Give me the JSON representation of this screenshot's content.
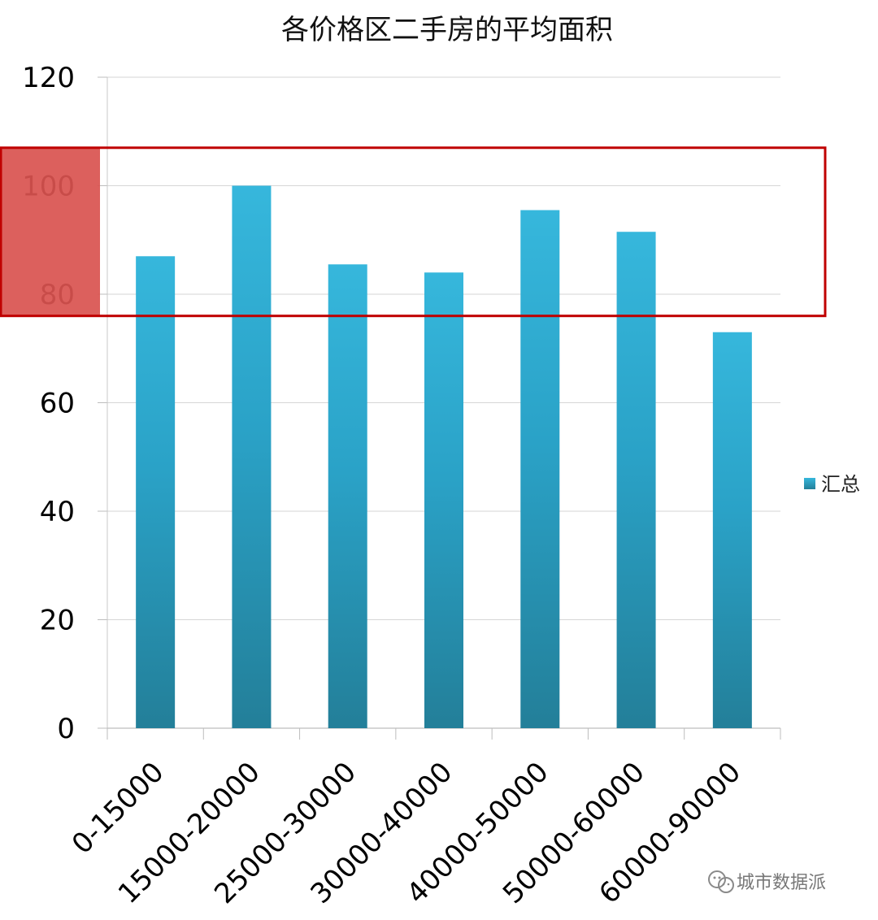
{
  "chart_data": {
    "type": "bar",
    "title": "各价格区二手房的平均面积",
    "xlabel": "",
    "ylabel": "",
    "categories": [
      "0-15000",
      "15000-20000",
      "25000-30000",
      "30000-40000",
      "40000-50000",
      "50000-60000",
      "60000-90000"
    ],
    "series": [
      {
        "name": "汇总",
        "values": [
          87,
          100,
          85.5,
          84,
          95.5,
          91.5,
          73
        ],
        "color": "#2aa2c7"
      }
    ],
    "ylim": [
      0,
      120
    ],
    "yticks": [
      0,
      20,
      40,
      60,
      80,
      100,
      120
    ],
    "grid": true,
    "legend_position": "right",
    "highlight": {
      "range": [
        76,
        107
      ],
      "box_color": "#c00000",
      "fill_color": "#d9534f"
    }
  },
  "watermark": {
    "text": "城市数据派",
    "icon": "wechat-icon"
  }
}
